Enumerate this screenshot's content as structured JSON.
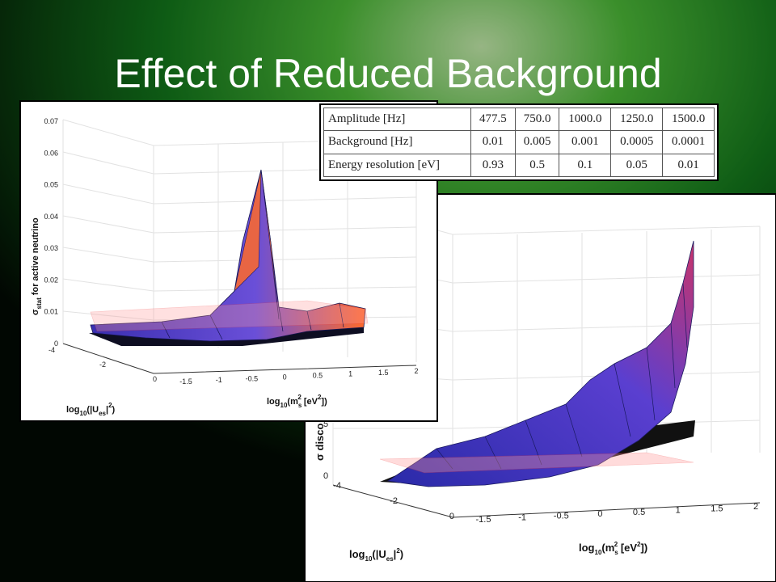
{
  "title": "Effect of Reduced Background",
  "table": {
    "rows": [
      [
        "Amplitude [Hz]",
        "477.5",
        "750.0",
        "1000.0",
        "1250.0",
        "1500.0"
      ],
      [
        "Background [Hz]",
        "0.01",
        "0.005",
        "0.001",
        "0.0005",
        "0.0001"
      ],
      [
        "Energy resolution [eV]",
        "0.93",
        "0.5",
        "0.1",
        "0.05",
        "0.01"
      ]
    ]
  },
  "plot1": {
    "z_label": [
      "σ",
      "stat",
      " for active neutrino"
    ],
    "z_ticks": [
      "0",
      "0.01",
      "0.02",
      "0.03",
      "0.04",
      "0.05",
      "0.06",
      "0.07"
    ],
    "y_ticks": [
      "-4",
      "-2",
      "0"
    ],
    "x_ticks": [
      "-1.5",
      "-1",
      "-0.5",
      "0",
      "0.5",
      "1",
      "1.5",
      "2"
    ],
    "y_label": [
      "log",
      "10",
      "(|U",
      "es",
      "|",
      "2",
      ")"
    ],
    "x_label": [
      "log",
      "10",
      "(m",
      "s",
      "2",
      " [eV",
      "2",
      "])"
    ]
  },
  "plot2": {
    "z_label": "σ disco",
    "z_ticks": [
      "0",
      "5"
    ],
    "y_ticks": [
      "-4",
      "-2",
      "0"
    ],
    "x_ticks": [
      "-1.5",
      "-1",
      "-0.5",
      "0",
      "0.5",
      "1",
      "1.5",
      "2"
    ],
    "y_label": [
      "log",
      "10",
      "(|U",
      "es",
      "|",
      "2",
      ")"
    ],
    "x_label": [
      "log",
      "10",
      "(m",
      "s",
      "2",
      " [eV",
      "2",
      "])"
    ]
  }
}
